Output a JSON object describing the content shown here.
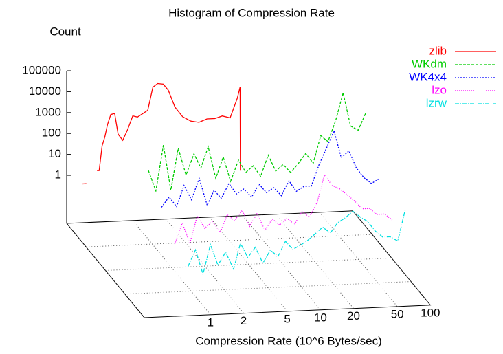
{
  "chart_data": {
    "type": "line",
    "title": "Histogram of Compression Rate",
    "xlabel": "Compression Rate (10^6 Bytes/sec)",
    "zlabel": "Count",
    "xscale": "log",
    "zscale": "log",
    "xlim": [
      0.25,
      100
    ],
    "xticks": [
      1,
      2,
      5,
      10,
      20,
      50,
      100
    ],
    "zlim": [
      0.005,
      100000
    ],
    "zticks": [
      1,
      10,
      100,
      1000,
      10000,
      100000
    ],
    "grid": true,
    "legend": "top-right",
    "series": [
      {
        "name": "zlib",
        "color": "#ff0000",
        "dash": "none",
        "x": [
          0.33,
          0.36,
          0.4,
          0.45,
          0.47,
          0.5,
          0.53,
          0.56,
          0.6,
          0.65,
          0.7,
          0.77,
          0.85,
          0.95,
          1.05,
          1.15,
          1.3,
          1.45,
          1.6,
          1.8,
          2.0,
          2.3,
          2.7,
          3.2,
          3.8,
          4.5,
          5.3,
          6.2,
          7.3,
          8.5,
          9.0,
          9.05
        ],
        "values": [
          0.5,
          0.5,
          null,
          2,
          2,
          30,
          80,
          300,
          900,
          1000,
          100,
          50,
          150,
          700,
          600,
          800,
          1200,
          15000,
          22000,
          20000,
          10000,
          1500,
          500,
          300,
          250,
          350,
          350,
          450,
          350,
          3000,
          10000,
          1
        ]
      },
      {
        "name": "WKdm",
        "color": "#00cc00",
        "dash": "4 2",
        "x": [
          1,
          1.17,
          1.37,
          1.6,
          1.87,
          2.2,
          2.6,
          3,
          3.5,
          4.1,
          4.8,
          5.6,
          6.6,
          7.7,
          9,
          10.5,
          12.3,
          14.4,
          16.8,
          19.7,
          23,
          27,
          31.6,
          37,
          43,
          50.6,
          59,
          69,
          81,
          95
        ],
        "values": [
          10,
          1,
          150,
          1,
          100,
          5,
          50,
          10,
          100,
          3,
          30,
          2,
          20,
          5,
          10,
          3,
          30,
          5,
          10,
          4,
          10,
          30,
          10,
          200,
          100,
          1000,
          20000,
          500,
          300,
          2000
        ]
      },
      {
        "name": "WK4x4",
        "color": "#0000ff",
        "dash": "2 2",
        "x": [
          1,
          1.17,
          1.37,
          1.6,
          1.87,
          2.2,
          2.6,
          3,
          3.5,
          4.1,
          4.8,
          5.6,
          6.6,
          7.7,
          9,
          10.5,
          12.3,
          14.4,
          16.8,
          19.7,
          23,
          27,
          31.6,
          37,
          43,
          50.6,
          59,
          69,
          81,
          95
        ],
        "values": [
          1,
          3,
          1,
          10,
          2,
          20,
          1,
          5,
          2,
          10,
          3,
          5,
          2,
          8,
          3,
          5,
          2,
          10,
          3,
          5,
          5,
          50,
          300,
          2000,
          100,
          200,
          30,
          10,
          5,
          8
        ]
      },
      {
        "name": "lzo",
        "color": "#ff00ff",
        "dash": "1 2",
        "x": [
          1,
          1.17,
          1.37,
          1.6,
          1.87,
          2.2,
          2.6,
          3,
          3.5,
          4.1,
          4.8,
          5.6,
          6.6,
          7.7,
          9,
          10.5,
          12.3,
          14.4,
          16.8,
          19.7,
          23,
          27,
          31.6,
          37,
          43,
          50.6,
          59,
          69,
          81,
          95
        ],
        "values": [
          0.1,
          1,
          0.1,
          2,
          0.5,
          1,
          0.3,
          2,
          1,
          3,
          0.5,
          2,
          0.3,
          1,
          0.5,
          1,
          0.5,
          2,
          1,
          5,
          100,
          30,
          20,
          10,
          5,
          2,
          2,
          1,
          1,
          0.5
        ]
      },
      {
        "name": "lzrw",
        "color": "#00e0e0",
        "dash": "6 2 1 2",
        "x": [
          1,
          1.17,
          1.37,
          1.6,
          1.87,
          2.2,
          2.6,
          3,
          3.5,
          4.1,
          4.8,
          5.6,
          6.6,
          7.7,
          9,
          10.5,
          12.3,
          14.4,
          16.8,
          19.7,
          23,
          27,
          31.6,
          37,
          43,
          50.6,
          59,
          69,
          81,
          95
        ],
        "values": [
          0.05,
          0.3,
          0.02,
          0.5,
          0.05,
          0.2,
          0.03,
          0.5,
          0.1,
          0.3,
          0.05,
          0.2,
          0.1,
          0.5,
          0.2,
          0.3,
          0.5,
          1,
          2,
          1,
          3,
          5,
          10,
          5,
          3,
          1,
          0.5,
          0.5,
          0.3,
          10
        ]
      }
    ]
  }
}
